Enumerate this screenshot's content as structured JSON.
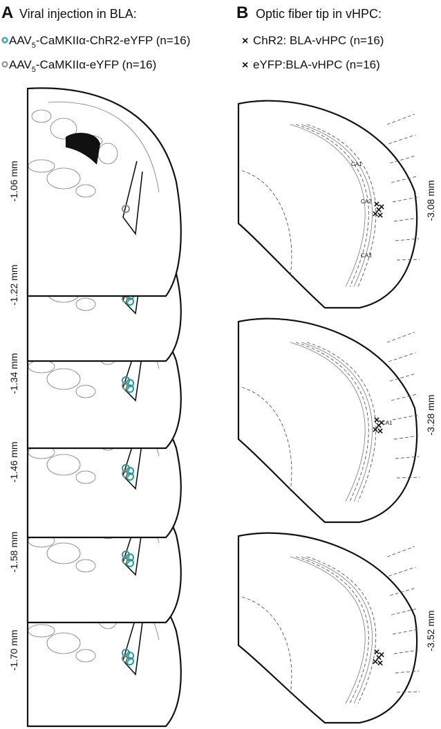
{
  "panel_a": {
    "letter": "A",
    "title": "Viral injection in BLA:",
    "legend": [
      {
        "prefix": "AAV",
        "subscript": "5",
        "suffix": "-CaMKIIα-ChR2-eYFP (n=16)"
      },
      {
        "prefix": "AAV",
        "subscript": "5",
        "suffix": "-CaMKIIα-eYFP (n=16)"
      }
    ],
    "sections": [
      "-1.06 mm",
      "-1.22 mm",
      "-1.34 mm",
      "-1.46 mm",
      "-1.58 mm",
      "-1.70 mm"
    ]
  },
  "panel_b": {
    "letter": "B",
    "title": "Optic fiber tip in vHPC:",
    "legend": [
      "ChR2: BLA-vHPC (n=16)",
      "eYFP:BLA-vHPC (n=16)"
    ],
    "sections": [
      "-3.08 mm",
      "-3.28 mm",
      "-3.52 mm"
    ],
    "region_labels": [
      "CA1",
      "CA2",
      "CA3",
      "CA1"
    ]
  }
}
